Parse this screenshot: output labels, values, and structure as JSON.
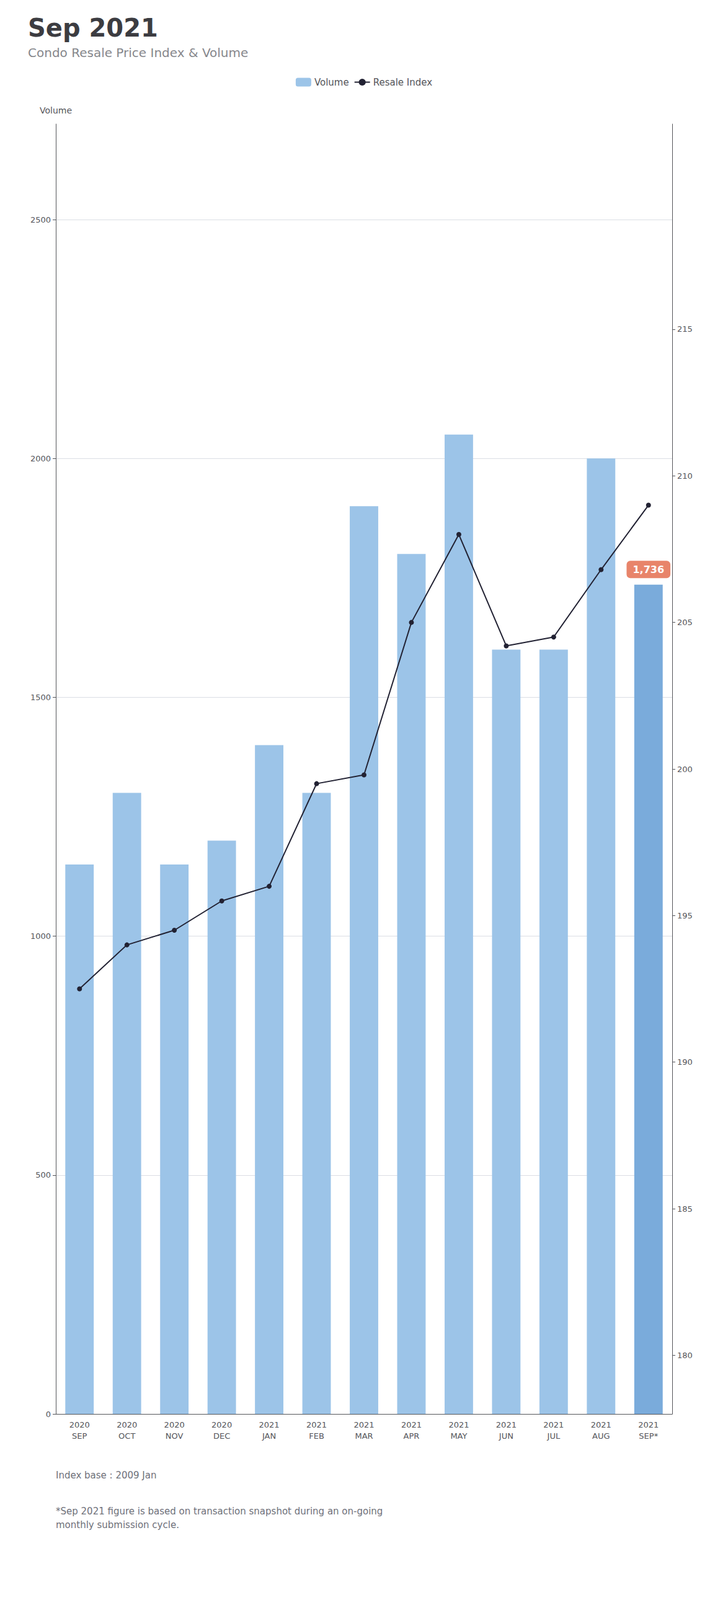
{
  "chart_data": {
    "type": "bar",
    "title": "Sep 2021",
    "subtitle": "Condo Resale Price Index & Volume",
    "categories": [
      "2020\nSEP",
      "2020\nOCT",
      "2020\nNOV",
      "2020\nDEC",
      "2021\nJAN",
      "2021\nFEB",
      "2021\nMAR",
      "2021\nAPR",
      "2021\nMAY",
      "2021\nJUN",
      "2021\nJUL",
      "2021\nAUG",
      "2021\nSEP*"
    ],
    "series": [
      {
        "name": "Volume",
        "type": "bar",
        "colors": [
          "#9CC4E8",
          "#9CC4E8",
          "#9CC4E8",
          "#9CC4E8",
          "#9CC4E8",
          "#9CC4E8",
          "#9CC4E8",
          "#9CC4E8",
          "#9CC4E8",
          "#9CC4E8",
          "#9CC4E8",
          "#9CC4E8",
          "#7AABDB"
        ],
        "values": [
          1150,
          1300,
          1150,
          1200,
          1400,
          1300,
          1900,
          1800,
          2050,
          1600,
          1600,
          2000,
          1736
        ]
      },
      {
        "name": "Resale Index",
        "type": "line",
        "axis": "y2",
        "color": "#222233",
        "marker": "circle",
        "line_style": "solid",
        "values": [
          192.5,
          194.0,
          194.5,
          195.5,
          196.0,
          199.5,
          199.8,
          205.0,
          208.0,
          204.2,
          204.5,
          206.8,
          209.0
        ]
      }
    ],
    "ylabel": "Volume",
    "ylim": [
      0,
      2700
    ],
    "yticks": [
      0,
      500,
      1000,
      1500,
      2000,
      2500
    ],
    "y2lim": [
      178,
      222
    ],
    "y2ticks": [
      180,
      185,
      190,
      195,
      200,
      205,
      210,
      215
    ],
    "grid": true,
    "legend": "top",
    "annotations": [
      {
        "text": "1,736",
        "x": "2021\nSEP*",
        "y": 1736
      },
      {
        "text": "Index base : 2009 Jan"
      },
      {
        "text": "*Sep 2021 figure is based on transaction snapshot during an on-going\nmonthly submission cycle."
      }
    ]
  }
}
